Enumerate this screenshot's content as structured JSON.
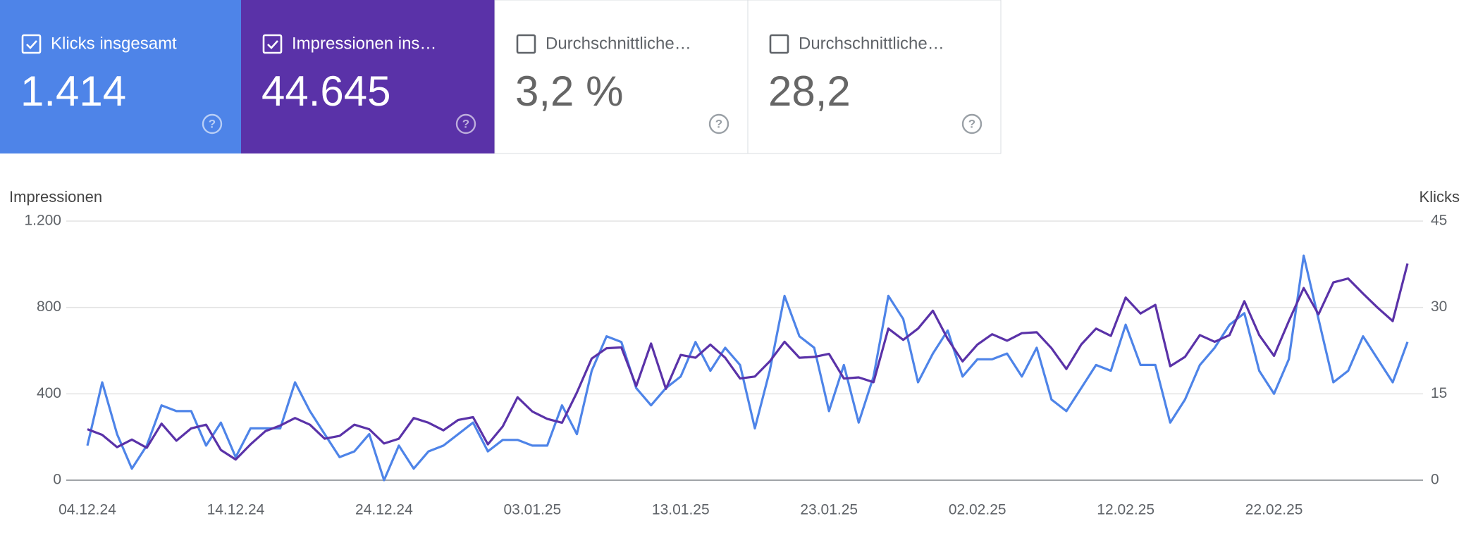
{
  "cards": [
    {
      "label": "Klicks insgesamt",
      "value": "1.414",
      "checked": true
    },
    {
      "label": "Impressionen ins…",
      "value": "44.645",
      "checked": true
    },
    {
      "label": "Durchschnittliche…",
      "value": "3,2 %",
      "checked": false
    },
    {
      "label": "Durchschnittliche…",
      "value": "28,2",
      "checked": false
    }
  ],
  "chart_data": {
    "type": "line",
    "y_label": "Impressionen",
    "y2_label": "Klicks",
    "categories": [
      "04.12.24",
      null,
      null,
      null,
      null,
      null,
      null,
      null,
      null,
      null,
      "14.12.24",
      null,
      null,
      null,
      null,
      null,
      null,
      null,
      null,
      null,
      "24.12.24",
      null,
      null,
      null,
      null,
      null,
      null,
      null,
      null,
      null,
      "03.01.25",
      null,
      null,
      null,
      null,
      null,
      null,
      null,
      null,
      null,
      "13.01.25",
      null,
      null,
      null,
      null,
      null,
      null,
      null,
      null,
      null,
      "23.01.25",
      null,
      null,
      null,
      null,
      null,
      null,
      null,
      null,
      null,
      "02.02.25",
      null,
      null,
      null,
      null,
      null,
      null,
      null,
      null,
      null,
      "12.02.25",
      null,
      null,
      null,
      null,
      null,
      null,
      null,
      null,
      null,
      "22.02.25",
      null,
      null,
      null,
      null,
      null,
      null,
      null,
      null,
      null
    ],
    "series": [
      {
        "color": "#4e84e8",
        "axis": "y2",
        "values": [
          6,
          17,
          8,
          2,
          6,
          13,
          12,
          12,
          6,
          10,
          4,
          9,
          9,
          9,
          17,
          12,
          8,
          4,
          5,
          8,
          0,
          6,
          2,
          5,
          6,
          8,
          10,
          5,
          7,
          7,
          6,
          6,
          13,
          8,
          19,
          25,
          24,
          16,
          13,
          16,
          18,
          24,
          19,
          23,
          20,
          9,
          19,
          32,
          25,
          23,
          12,
          20,
          10,
          18,
          32,
          28,
          17,
          22,
          26,
          18,
          21,
          21,
          22,
          18,
          23,
          14,
          12,
          16,
          20,
          19,
          27,
          20,
          20,
          10,
          14,
          20,
          23,
          27,
          29,
          19,
          15,
          21,
          39,
          28,
          17,
          19,
          25,
          21,
          17,
          24
        ]
      },
      {
        "color": "#5a32a8",
        "values": [
          236,
          210,
          153,
          188,
          150,
          262,
          183,
          240,
          257,
          140,
          96,
          166,
          227,
          253,
          288,
          257,
          192,
          205,
          257,
          236,
          170,
          192,
          288,
          266,
          231,
          279,
          292,
          166,
          249,
          384,
          318,
          284,
          266,
          406,
          563,
          611,
          615,
          436,
          633,
          423,
          580,
          567,
          628,
          567,
          471,
          480,
          550,
          641,
          567,
          571,
          585,
          471,
          476,
          454,
          702,
          650,
          702,
          785,
          654,
          550,
          628,
          676,
          646,
          681,
          685,
          611,
          515,
          628,
          702,
          668,
          846,
          772,
          812,
          528,
          571,
          672,
          641,
          672,
          829,
          672,
          576,
          737,
          890,
          768,
          916,
          934,
          864,
          798,
          737,
          1003
        ]
      }
    ],
    "ylim": [
      0,
      1200
    ],
    "yticks": [
      0,
      400,
      800,
      {
        "value": 1200,
        "label": "1.200"
      }
    ],
    "y2lim": [
      0,
      45
    ],
    "y2ticks": [
      0,
      15,
      30,
      45
    ],
    "grid": true
  }
}
